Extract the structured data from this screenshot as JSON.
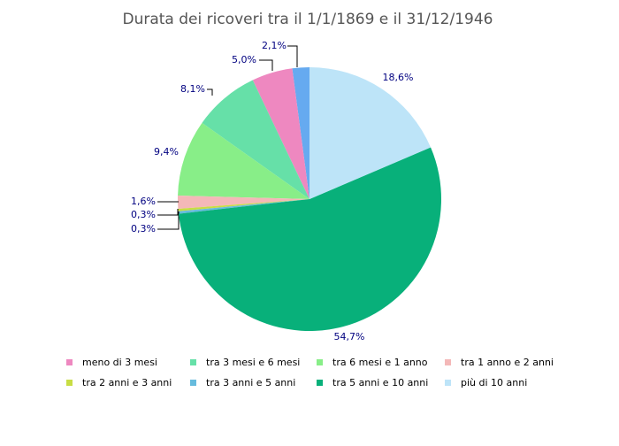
{
  "chart_data": {
    "type": "pie",
    "title": "Durata dei ricoveri tra il 1/1/1869 e il 31/12/1946",
    "categories": [
      null,
      "meno di 3 mesi",
      "tra 3 mesi e 6 mesi",
      "tra 6 mesi e 1 anno",
      "tra 1 anno e 2 anni",
      "tra 2 anni e 3 anni",
      "tra 3 anni e 5 anni",
      "tra 5 anni e 10 anni",
      "più di 10 anni"
    ],
    "values": [
      2.1,
      5.0,
      8.1,
      9.4,
      1.6,
      0.3,
      0.3,
      54.7,
      18.6
    ],
    "value_labels": [
      "2,1%",
      "5,0%",
      "8,1%",
      "9,4%",
      "1,6%",
      "0,3%",
      "0,3%",
      "54,7%",
      "18,6%"
    ],
    "colors": [
      "#66aaf0",
      "#ee88c0",
      "#66e0a8",
      "#88ee88",
      "#f4b8b8",
      "#c8dd44",
      "#66bbdd",
      "#08b07a",
      "#bde4f8"
    ],
    "direction": "counterclockwise",
    "legend": "bottom"
  }
}
